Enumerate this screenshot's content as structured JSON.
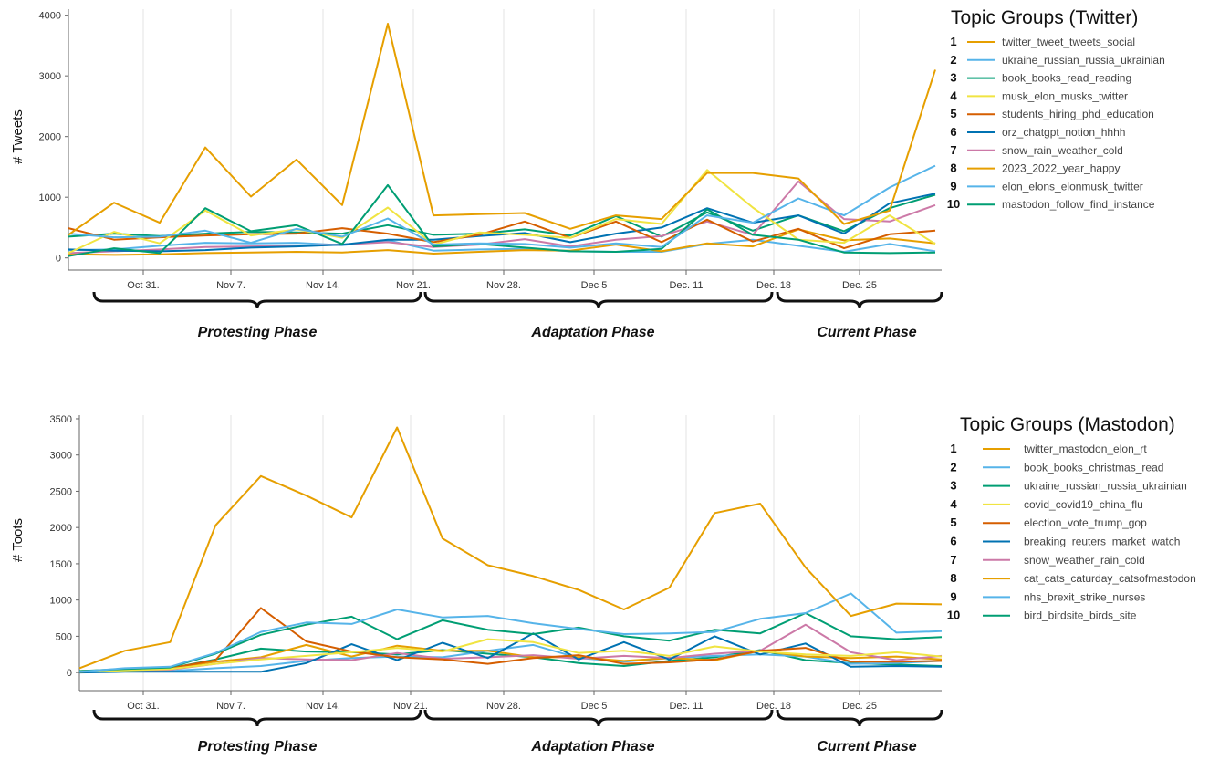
{
  "chart_data": [
    {
      "type": "line",
      "ylabel": "# Tweets",
      "ylim": [
        -200,
        4100
      ],
      "yticks": [
        0,
        1000,
        2000,
        3000,
        4000
      ],
      "x_ticks": [
        "Oct 31.",
        "Nov 7.",
        "Nov 14.",
        "Nov 21.",
        "Nov 28.",
        "Dec 5",
        "Dec. 11",
        "Dec. 18",
        "Dec. 25"
      ],
      "phases": [
        "Protesting Phase",
        "Adaptation Phase",
        "Current Phase"
      ],
      "legend_title": "Topic Groups (Twitter)",
      "series": [
        {
          "rank": "1",
          "name": "twitter_tweet_tweets_social",
          "color": "#E69F00",
          "values": [
            380,
            910,
            580,
            1820,
            1010,
            1620,
            870,
            3860,
            700,
            720,
            740,
            480,
            700,
            640,
            1400,
            1400,
            1310,
            560,
            780,
            3100
          ]
        },
        {
          "rank": "2",
          "name": "ukraine_russian_russia_ukrainian",
          "color": "#56B4E9",
          "values": [
            400,
            340,
            350,
            450,
            250,
            480,
            350,
            650,
            220,
            240,
            230,
            170,
            240,
            180,
            700,
            580,
            980,
            700,
            1160,
            1520
          ]
        },
        {
          "rank": "3",
          "name": "book_books_read_reading",
          "color": "#009E73",
          "values": [
            30,
            160,
            80,
            820,
            440,
            540,
            230,
            1200,
            190,
            230,
            170,
            110,
            100,
            150,
            800,
            380,
            300,
            90,
            80,
            90
          ]
        },
        {
          "rank": "4",
          "name": "musk_elon_musks_twitter",
          "color": "#F0E442",
          "values": [
            80,
            430,
            240,
            780,
            370,
            470,
            330,
            830,
            220,
            420,
            380,
            330,
            640,
            560,
            1450,
            830,
            300,
            250,
            700,
            230
          ]
        },
        {
          "rank": "5",
          "name": "students_hiring_phd_education",
          "color": "#D55E00",
          "values": [
            490,
            300,
            340,
            370,
            390,
            400,
            490,
            400,
            260,
            380,
            600,
            330,
            600,
            260,
            630,
            270,
            480,
            160,
            390,
            450
          ]
        },
        {
          "rank": "6",
          "name": "orz_chatgpt_notion_hhhh",
          "color": "#0072B2",
          "values": [
            140,
            120,
            110,
            130,
            170,
            190,
            220,
            300,
            300,
            360,
            410,
            260,
            400,
            500,
            820,
            580,
            700,
            400,
            900,
            1060
          ]
        },
        {
          "rank": "7",
          "name": "snow_rain_weather_cold",
          "color": "#CC79A7",
          "values": [
            80,
            110,
            140,
            180,
            190,
            200,
            220,
            260,
            180,
            220,
            310,
            190,
            300,
            360,
            600,
            380,
            1260,
            640,
            600,
            870
          ]
        },
        {
          "rank": "8",
          "name": "2023_2022_year_happy",
          "color": "#E69F00",
          "values": [
            60,
            50,
            60,
            80,
            90,
            100,
            90,
            130,
            70,
            100,
            130,
            120,
            220,
            110,
            240,
            190,
            470,
            290,
            320,
            240
          ]
        },
        {
          "rank": "9",
          "name": "elon_elons_elonmusk_twitter",
          "color": "#56B4E9",
          "values": [
            130,
            140,
            200,
            250,
            240,
            250,
            210,
            290,
            120,
            140,
            150,
            110,
            100,
            100,
            230,
            300,
            200,
            100,
            230,
            110
          ]
        },
        {
          "rank": "10",
          "name": "mastodon_follow_find_instance",
          "color": "#009E73",
          "values": [
            350,
            400,
            360,
            400,
            430,
            420,
            400,
            540,
            380,
            400,
            470,
            370,
            690,
            350,
            750,
            450,
            700,
            440,
            820,
            1040
          ]
        }
      ]
    },
    {
      "type": "line",
      "ylabel": "# Toots",
      "ylim": [
        -250,
        3550
      ],
      "yticks": [
        0,
        500,
        1000,
        1500,
        2000,
        2500,
        3000,
        3500
      ],
      "x_ticks": [
        "Oct 31.",
        "Nov 7.",
        "Nov 14.",
        "Nov 21.",
        "Nov 28.",
        "Dec 5",
        "Dec. 11",
        "Dec. 18",
        "Dec. 25"
      ],
      "phases": [
        "Protesting Phase",
        "Adaptation Phase",
        "Current Phase"
      ],
      "legend_title": "Topic Groups (Mastodon)",
      "series": [
        {
          "rank": "1",
          "name": "twitter_mastodon_elon_rt",
          "color": "#E69F00",
          "values": [
            60,
            300,
            420,
            2030,
            2710,
            2440,
            2140,
            3380,
            1850,
            1480,
            1330,
            1140,
            870,
            1170,
            2200,
            2330,
            1450,
            780,
            950,
            940
          ]
        },
        {
          "rank": "2",
          "name": "book_books_christmas_read",
          "color": "#56B4E9",
          "values": [
            10,
            60,
            80,
            270,
            560,
            690,
            670,
            870,
            760,
            780,
            680,
            600,
            530,
            540,
            560,
            740,
            820,
            1090,
            550,
            570
          ]
        },
        {
          "rank": "3",
          "name": "ukraine_russian_russia_ukrainian",
          "color": "#009E73",
          "values": [
            20,
            50,
            70,
            260,
            520,
            660,
            770,
            460,
            720,
            590,
            530,
            620,
            500,
            440,
            590,
            540,
            820,
            500,
            460,
            490
          ]
        },
        {
          "rank": "4",
          "name": "covid_covid19_china_flu",
          "color": "#F0E442",
          "values": [
            10,
            30,
            50,
            120,
            180,
            230,
            280,
            340,
            290,
            460,
            420,
            270,
            300,
            230,
            360,
            290,
            250,
            230,
            280,
            220
          ]
        },
        {
          "rank": "5",
          "name": "election_vote_trump_gop",
          "color": "#D55E00",
          "values": [
            10,
            40,
            60,
            170,
            890,
            430,
            290,
            210,
            180,
            120,
            200,
            240,
            120,
            140,
            180,
            300,
            340,
            150,
            150,
            160
          ]
        },
        {
          "rank": "6",
          "name": "breaking_reuters_market_watch",
          "color": "#0072B2",
          "values": [
            0,
            10,
            10,
            10,
            10,
            130,
            390,
            170,
            410,
            200,
            540,
            180,
            420,
            180,
            500,
            250,
            400,
            80,
            90,
            80
          ]
        },
        {
          "rank": "7",
          "name": "snow_weather_rain_cold",
          "color": "#CC79A7",
          "values": [
            10,
            20,
            40,
            120,
            200,
            180,
            170,
            270,
            190,
            210,
            240,
            190,
            230,
            200,
            260,
            300,
            660,
            280,
            170,
            230
          ]
        },
        {
          "rank": "8",
          "name": "cat_cats_caturday_catsofmastodon",
          "color": "#E69F00",
          "values": [
            20,
            40,
            60,
            150,
            210,
            380,
            220,
            370,
            300,
            300,
            210,
            210,
            160,
            200,
            170,
            300,
            220,
            200,
            220,
            180
          ]
        },
        {
          "rank": "9",
          "name": "nhs_brexit_strike_nurses",
          "color": "#56B4E9",
          "values": [
            10,
            20,
            20,
            60,
            90,
            160,
            200,
            220,
            210,
            300,
            380,
            200,
            150,
            200,
            230,
            250,
            220,
            120,
            130,
            160
          ]
        },
        {
          "rank": "10",
          "name": "bird_birdsite_birds_site",
          "color": "#009E73",
          "values": [
            20,
            40,
            60,
            180,
            330,
            290,
            280,
            250,
            310,
            260,
            210,
            130,
            90,
            160,
            210,
            310,
            170,
            130,
            110,
            90
          ]
        }
      ]
    }
  ]
}
